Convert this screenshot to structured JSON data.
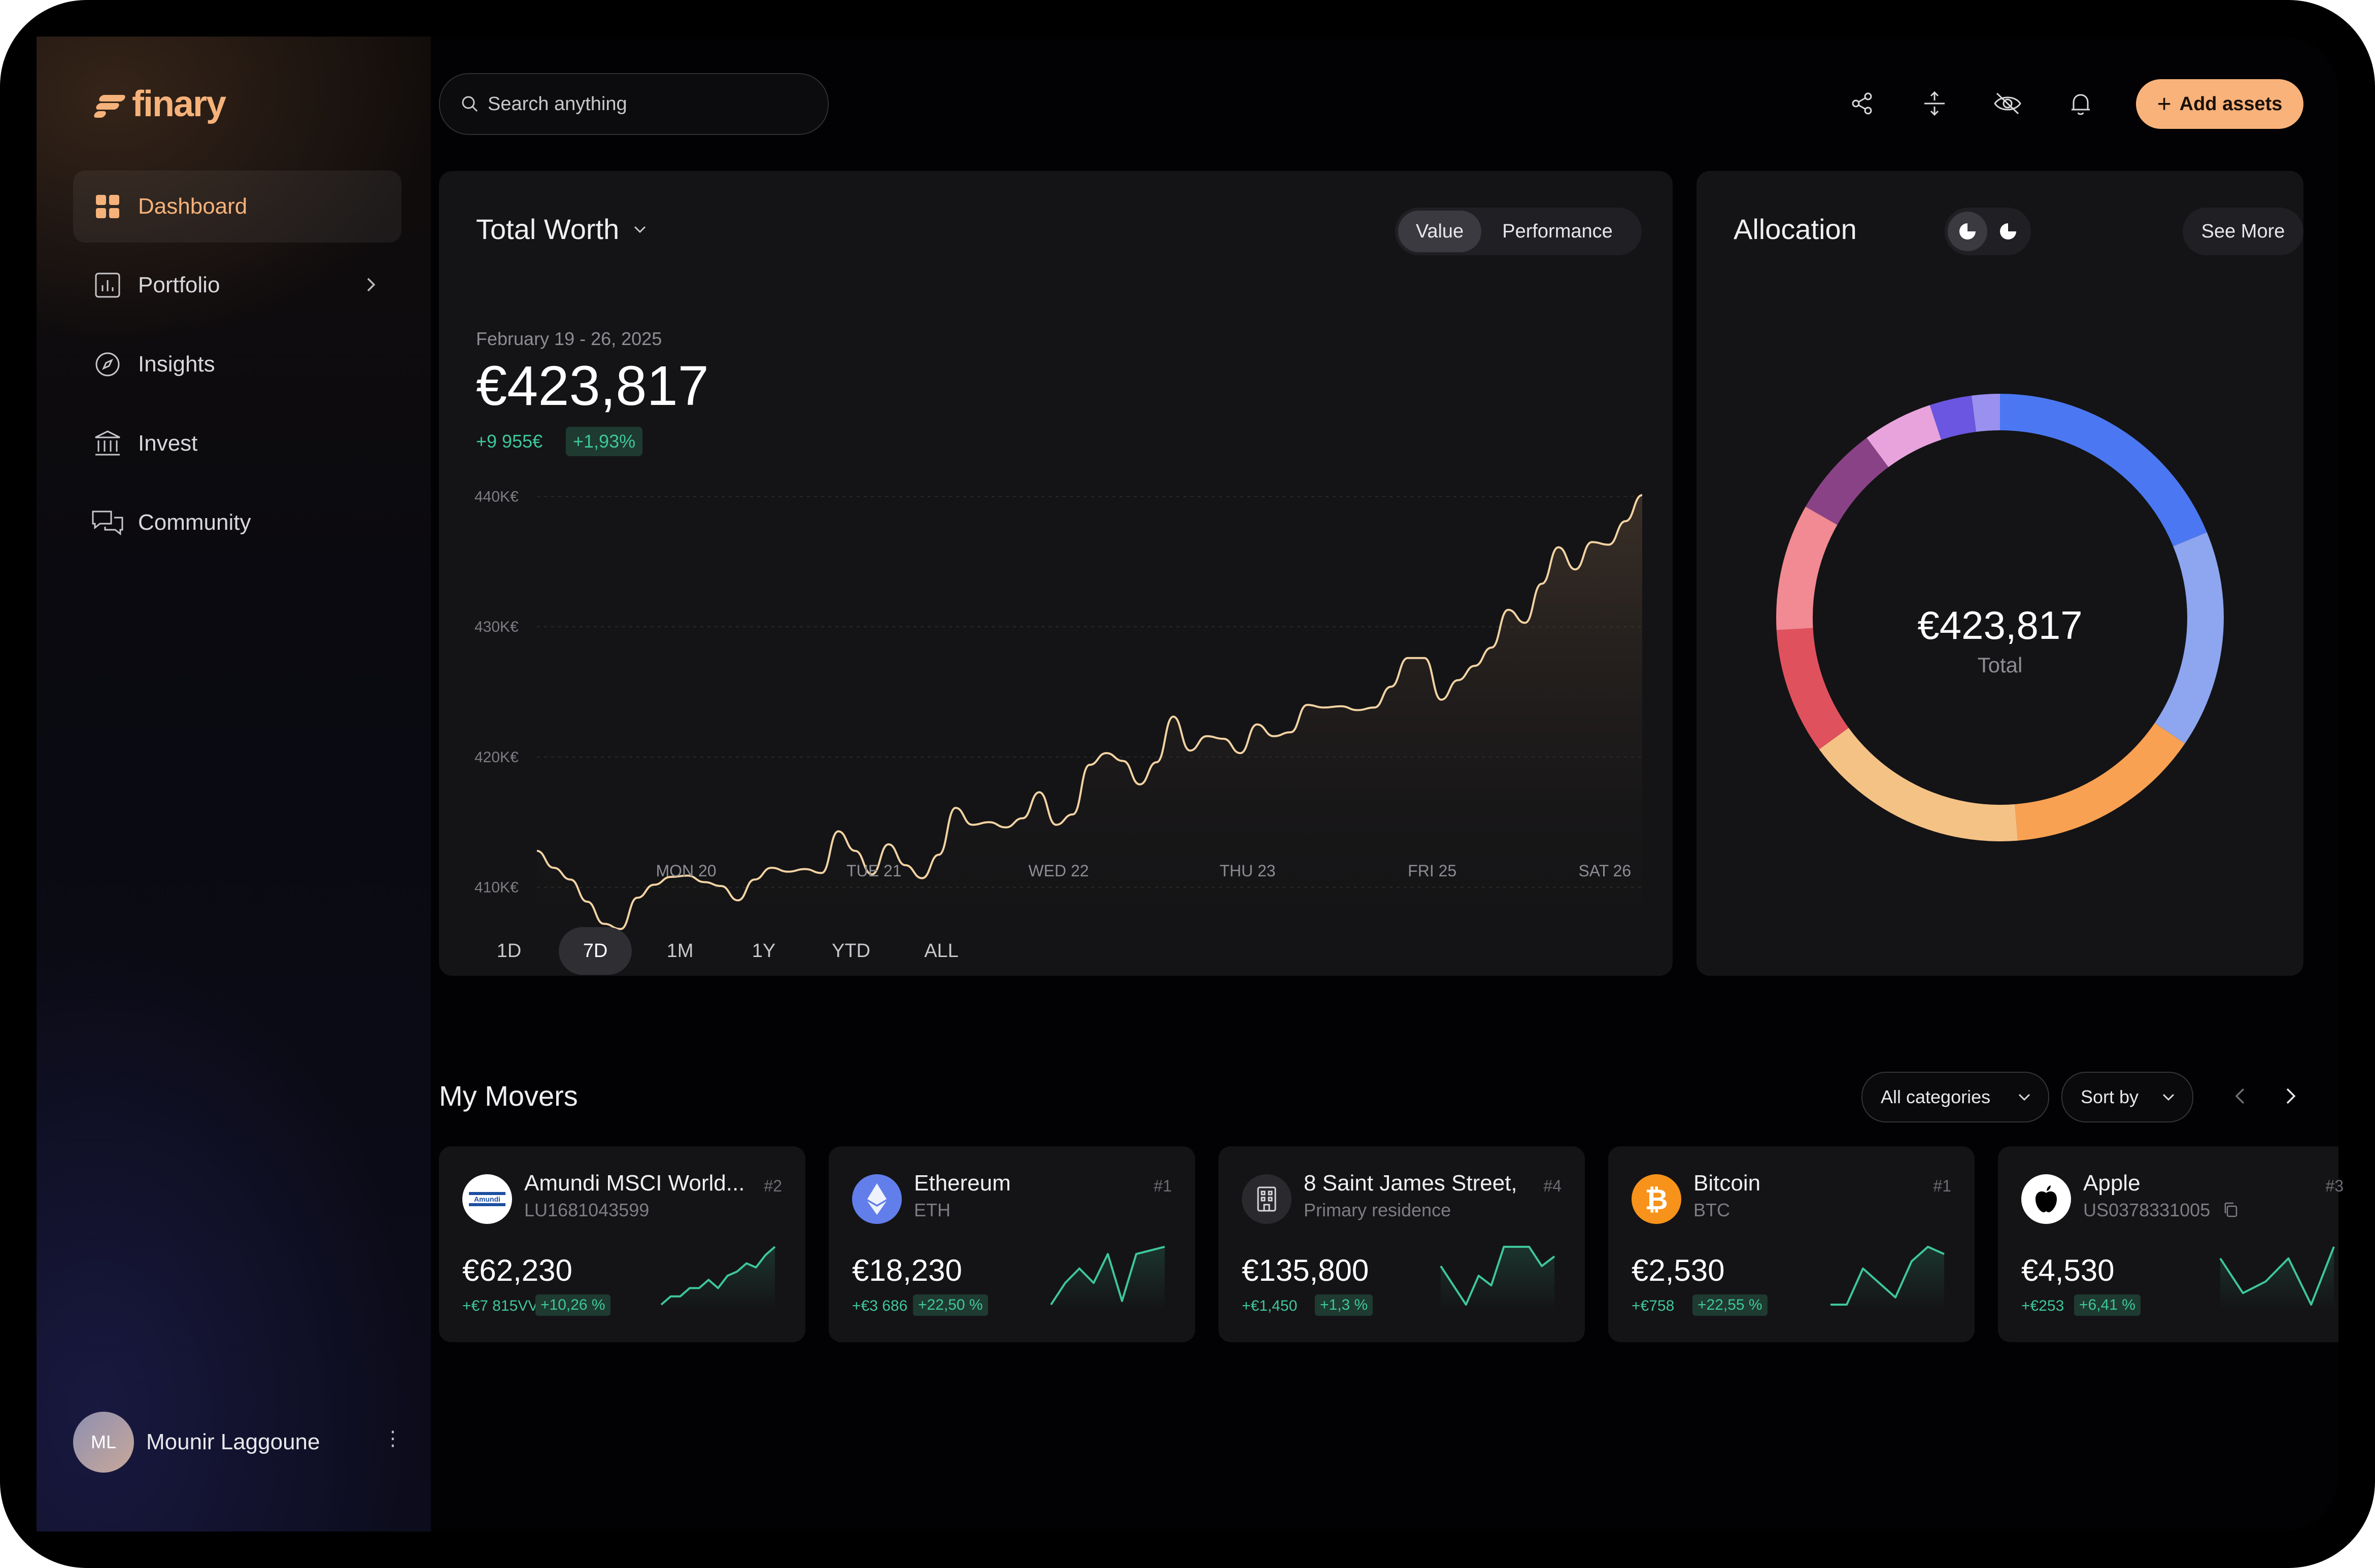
{
  "brand": {
    "name": "finary"
  },
  "sidebar": {
    "items": [
      {
        "label": "Dashboard",
        "icon": "grid-icon",
        "active": true
      },
      {
        "label": "Portfolio",
        "icon": "bar-chart-icon",
        "has_chevron": true
      },
      {
        "label": "Insights",
        "icon": "compass-icon"
      },
      {
        "label": "Invest",
        "icon": "bank-icon"
      },
      {
        "label": "Community",
        "icon": "chat-bubbles-icon"
      }
    ],
    "user": {
      "initials": "ML",
      "name": "Mounir Laggoune",
      "more": "⋮"
    }
  },
  "topbar": {
    "search_placeholder": "Search anything",
    "icons": [
      "share-icon",
      "expand-vertical-icon",
      "eye-off-icon",
      "bell-icon"
    ],
    "add_button": "Add assets"
  },
  "total_worth": {
    "title": "Total Worth",
    "toggle": {
      "options": [
        "Value",
        "Performance"
      ],
      "selected": "Value"
    },
    "date_range": "February 19 - 26, 2025",
    "value": "€423,817",
    "change_abs": "+9 955€",
    "change_pct": "+1,93%",
    "time_ranges": [
      "1D",
      "7D",
      "1M",
      "1Y",
      "YTD",
      "ALL"
    ],
    "selected_range": "7D"
  },
  "chart_data": {
    "type": "line",
    "title": "",
    "xlabel": "",
    "ylabel": "",
    "x_ticks": [
      "MON 20",
      "TUE 21",
      "WED 22",
      "THU 23",
      "FRI 25",
      "SAT 26"
    ],
    "y_ticks": [
      "440K€",
      "430K€",
      "420K€",
      "410K€"
    ],
    "ylim": [
      405,
      442
    ],
    "grid": true,
    "series": [
      {
        "values": [
          412.8,
          411.5,
          410.6,
          408.9,
          407.2,
          406.8,
          409.2,
          410.2,
          410.8,
          410.9,
          410.4,
          410.1,
          409.0,
          410.6,
          411.5,
          411.2,
          411.4,
          411.1,
          414.3,
          412.8,
          411.0,
          413.3,
          411.7,
          410.7,
          412.5,
          416.1,
          414.8,
          415.0,
          414.6,
          415.3,
          417.3,
          414.8,
          415.6,
          419.4,
          420.3,
          419.7,
          417.9,
          419.6,
          423.1,
          420.5,
          421.6,
          421.4,
          420.3,
          422.5,
          421.6,
          421.9,
          424.0,
          423.8,
          423.9,
          423.6,
          423.8,
          425.4,
          427.6,
          427.6,
          424.4,
          425.9,
          427.0,
          428.4,
          431.3,
          430.3,
          433.3,
          436.1,
          434.4,
          436.5,
          436.3,
          438.1,
          440.1
        ]
      }
    ]
  },
  "allocation": {
    "title": "Allocation",
    "see_more": "See More",
    "total_value": "€423,817",
    "total_label": "Total",
    "slices": [
      {
        "pct": 18.5,
        "color": "#4b78f2"
      },
      {
        "pct": 15.5,
        "color": "#8ea5ef"
      },
      {
        "pct": 14,
        "color": "#f9a152"
      },
      {
        "pct": 16,
        "color": "#f5c286"
      },
      {
        "pct": 9,
        "color": "#e0515e"
      },
      {
        "pct": 9,
        "color": "#f18a92"
      },
      {
        "pct": 6.5,
        "color": "#8a4286"
      },
      {
        "pct": 5,
        "color": "#e8a3dd"
      },
      {
        "pct": 3,
        "color": "#6a56e0"
      },
      {
        "pct": 2,
        "color": "#9a90ef"
      }
    ]
  },
  "movers": {
    "title": "My Movers",
    "filter_categories": "All categories",
    "sort_label": "Sort by",
    "cards": [
      {
        "name": "Amundi MSCI World...",
        "sub": "LU1681043599",
        "rank": "#2",
        "value": "€62,230",
        "change_abs": "+€7 815VV",
        "change_pct": "+10,26 %",
        "icon": "amundi-logo-icon",
        "spark": [
          3,
          4,
          4,
          5,
          5,
          6,
          5,
          6.5,
          7,
          8,
          7.5,
          9,
          10
        ]
      },
      {
        "name": "Ethereum",
        "sub": "ETH",
        "rank": "#1",
        "value": "€18,230",
        "change_abs": "+€3 686",
        "change_pct": "+22,50 %",
        "icon": "ethereum-icon",
        "spark": [
          2,
          5,
          7,
          5,
          9,
          2.5,
          9,
          9.5,
          10
        ]
      },
      {
        "name": "8 Saint James Street,",
        "sub": "Primary residence",
        "rank": "#4",
        "value": "€135,800",
        "change_abs": "+€1,450",
        "change_pct": "+1,3 %",
        "icon": "building-icon",
        "spark": [
          6,
          4,
          2,
          5,
          4,
          8,
          8,
          8,
          6,
          7
        ]
      },
      {
        "name": "Bitcoin",
        "sub": "BTC",
        "rank": "#1",
        "value": "€2,530",
        "change_abs": "+€758",
        "change_pct": "+22,55 %",
        "icon": "bitcoin-icon",
        "spark": [
          1,
          1,
          6,
          4,
          2,
          7,
          9,
          8
        ]
      },
      {
        "name": "Apple",
        "sub": "US0378331005",
        "rank": "#3",
        "value": "€4,530",
        "change_abs": "+€253",
        "change_pct": "+6,41 %",
        "icon": "apple-icon",
        "spark": [
          8,
          5,
          6,
          8,
          4,
          9
        ]
      }
    ]
  },
  "colors": {
    "accent": "#f9b27a",
    "positive": "#3ec79a",
    "chart_line": "#f3d3a3"
  }
}
